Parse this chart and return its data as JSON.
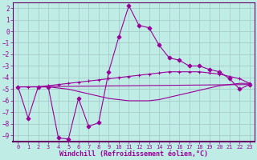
{
  "xlabel": "Windchill (Refroidissement éolien,°C)",
  "background_color": "#c0ece6",
  "grid_color": "#a0c8c4",
  "line_color": "#990099",
  "spine_color": "#660066",
  "xlim": [
    -0.5,
    23.5
  ],
  "ylim": [
    -9.5,
    2.5
  ],
  "yticks": [
    2,
    1,
    0,
    -1,
    -2,
    -3,
    -4,
    -5,
    -6,
    -7,
    -8,
    -9
  ],
  "xticks": [
    0,
    1,
    2,
    3,
    4,
    5,
    6,
    7,
    8,
    9,
    10,
    11,
    12,
    13,
    14,
    15,
    16,
    17,
    18,
    19,
    20,
    21,
    22,
    23
  ],
  "series": [
    {
      "x": [
        0,
        1,
        2,
        3,
        4,
        5,
        6,
        7,
        8,
        9,
        10,
        11,
        12,
        13,
        14,
        15,
        16,
        17,
        18,
        19,
        20,
        21,
        22,
        23
      ],
      "y": [
        -4.8,
        -7.5,
        -4.8,
        -4.8,
        -9.2,
        -9.3,
        -5.8,
        -8.2,
        -7.9,
        -3.5,
        -0.5,
        2.2,
        0.5,
        0.3,
        -1.2,
        -2.3,
        -2.5,
        -3.0,
        -3.0,
        -3.3,
        -3.5,
        -4.1,
        -5.0,
        -4.6
      ],
      "marker": "D",
      "markersize": 2.5,
      "linewidth": 0.8
    },
    {
      "x": [
        0,
        1,
        2,
        3,
        4,
        5,
        6,
        7,
        8,
        9,
        10,
        11,
        12,
        13,
        14,
        15,
        16,
        17,
        18,
        19,
        20,
        21,
        22,
        23
      ],
      "y": [
        -4.8,
        -4.8,
        -4.8,
        -4.7,
        -4.6,
        -4.5,
        -4.4,
        -4.3,
        -4.2,
        -4.1,
        -4.0,
        -3.9,
        -3.8,
        -3.7,
        -3.6,
        -3.5,
        -3.5,
        -3.5,
        -3.5,
        -3.6,
        -3.7,
        -3.9,
        -4.1,
        -4.5
      ],
      "marker": "+",
      "markersize": 3.0,
      "linewidth": 0.8
    },
    {
      "x": [
        0,
        23
      ],
      "y": [
        -4.8,
        -4.6
      ],
      "marker": null,
      "markersize": 0,
      "linewidth": 0.8
    },
    {
      "x": [
        0,
        1,
        2,
        3,
        4,
        5,
        6,
        7,
        8,
        9,
        10,
        11,
        12,
        13,
        14,
        15,
        16,
        17,
        18,
        19,
        20,
        21,
        22,
        23
      ],
      "y": [
        -4.8,
        -4.8,
        -4.8,
        -4.8,
        -4.9,
        -5.0,
        -5.2,
        -5.4,
        -5.6,
        -5.8,
        -5.9,
        -6.0,
        -6.0,
        -6.0,
        -5.9,
        -5.7,
        -5.5,
        -5.3,
        -5.1,
        -4.9,
        -4.7,
        -4.6,
        -4.5,
        -4.5
      ],
      "marker": null,
      "markersize": 0,
      "linewidth": 0.8
    }
  ]
}
